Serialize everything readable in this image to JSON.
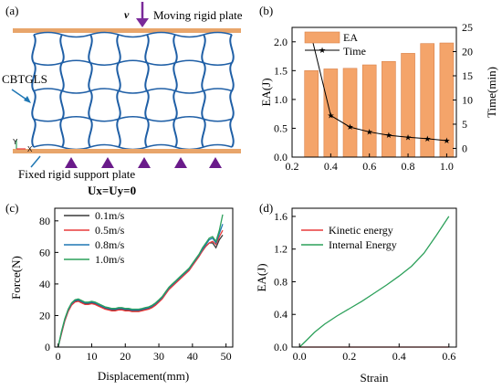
{
  "panel_a": {
    "label": "(a)",
    "velocity": "v",
    "moving_plate": "Moving rigid plate",
    "structure": "CBTGLS",
    "fixed_plate": "Fixed rigid support plate",
    "constraint": "Ux=Uy=0",
    "axis_y": "Y",
    "axis_x": "X",
    "accent": "#e8a56b",
    "structure_color": "#1f5fa6",
    "support_color": "#6a1b8a"
  },
  "chart_data": [
    {
      "id": "b",
      "label": "(b)",
      "type": "bar",
      "x": [
        0.3,
        0.4,
        0.5,
        0.6,
        0.7,
        0.8,
        0.9,
        1.0
      ],
      "series": [
        {
          "name": "EA",
          "type": "bar",
          "axis": "left",
          "color": "#f4a46a",
          "values": [
            1.5,
            1.53,
            1.54,
            1.6,
            1.66,
            1.8,
            1.97,
            1.98
          ]
        },
        {
          "name": "Time",
          "type": "line",
          "marker": "star",
          "axis": "right",
          "color": "#000000",
          "values": [
            23.2,
            6.8,
            4.4,
            3.4,
            2.7,
            2.3,
            2.0,
            1.6
          ]
        }
      ],
      "xlim": [
        0.2,
        1.05
      ],
      "ylim": [
        0,
        2.25
      ],
      "y2lim": [
        -1.8,
        25
      ],
      "xticks": [
        "0.2",
        "0.4",
        "0.6",
        "0.8",
        "1.0"
      ],
      "yticks": [
        "0.0",
        "0.5",
        "1.0",
        "1.5",
        "2.0"
      ],
      "y2ticks": [
        "0",
        "5",
        "10",
        "15",
        "20",
        "25"
      ],
      "ylabel": "EA(J)",
      "y2label": "Time(min)",
      "legend": "top-left"
    },
    {
      "id": "c",
      "label": "(c)",
      "type": "line",
      "xlim": [
        -1,
        52
      ],
      "ylim": [
        0,
        88
      ],
      "xticks": [
        "0",
        "10",
        "20",
        "30",
        "40",
        "50"
      ],
      "yticks": [
        "0",
        "20",
        "40",
        "60",
        "80"
      ],
      "xlabel": "Displacement(mm)",
      "ylabel": "Force(N)",
      "legend": "top-left",
      "series": [
        {
          "name": "0.1m/s",
          "color": "#3a3a3a",
          "x": [
            0,
            1,
            2,
            3,
            4,
            5,
            6,
            7,
            8,
            9,
            10,
            11,
            12,
            13,
            14,
            15,
            16,
            17,
            18,
            19,
            20,
            21,
            22,
            23,
            24,
            25,
            26,
            27,
            28,
            29,
            30,
            31,
            32,
            33,
            34,
            35,
            36,
            37,
            38,
            39,
            40,
            41,
            42,
            43,
            44,
            45,
            46,
            47,
            48,
            49
          ],
          "y": [
            0,
            9,
            17,
            23,
            27,
            29,
            29.5,
            28.5,
            27.5,
            27.5,
            28,
            27.5,
            26.5,
            25.5,
            24.5,
            24,
            23.5,
            23.5,
            24,
            24,
            23.5,
            23.5,
            23,
            23,
            23,
            23.5,
            24,
            24.5,
            25.5,
            27,
            29,
            31,
            34,
            37,
            39,
            41,
            43,
            45,
            47,
            49,
            52,
            55,
            58,
            61,
            64,
            66,
            66,
            63,
            68,
            71
          ]
        },
        {
          "name": "0.5m/s",
          "color": "#e83a3a",
          "x": [
            0,
            1,
            2,
            3,
            4,
            5,
            6,
            7,
            8,
            9,
            10,
            11,
            12,
            13,
            14,
            15,
            16,
            17,
            18,
            19,
            20,
            21,
            22,
            23,
            24,
            25,
            26,
            27,
            28,
            29,
            30,
            31,
            32,
            33,
            34,
            35,
            36,
            37,
            38,
            39,
            40,
            41,
            42,
            43,
            44,
            45,
            46,
            47,
            48,
            49
          ],
          "y": [
            0,
            8.5,
            16.5,
            22.5,
            26.5,
            28.5,
            29,
            28,
            27,
            27,
            27.5,
            27,
            26,
            25,
            24,
            23.5,
            23,
            23,
            23.5,
            23.5,
            23,
            23,
            22.5,
            22.5,
            22.5,
            23,
            23.5,
            24,
            25,
            26.5,
            28.5,
            30.5,
            33.5,
            36.5,
            38.5,
            40.5,
            42.5,
            44.5,
            46.5,
            48.5,
            51.5,
            54.5,
            57.5,
            61,
            64,
            66,
            67,
            65,
            70,
            74
          ]
        },
        {
          "name": "0.8m/s",
          "color": "#1f77b4",
          "x": [
            0,
            1,
            2,
            3,
            4,
            5,
            6,
            7,
            8,
            9,
            10,
            11,
            12,
            13,
            14,
            15,
            16,
            17,
            18,
            19,
            20,
            21,
            22,
            23,
            24,
            25,
            26,
            27,
            28,
            29,
            30,
            31,
            32,
            33,
            34,
            35,
            36,
            37,
            38,
            39,
            40,
            41,
            42,
            43,
            44,
            45,
            46,
            47,
            48,
            49
          ],
          "y": [
            0,
            9.5,
            17.5,
            23.5,
            27.5,
            29.5,
            30,
            29,
            28,
            28,
            28.5,
            28,
            27,
            26,
            25,
            24.5,
            24,
            24,
            24.5,
            24.5,
            24,
            24,
            23.5,
            23.5,
            23.5,
            24,
            24.5,
            25,
            26,
            27.5,
            29.5,
            31.5,
            34.5,
            37.5,
            39.5,
            41.5,
            43.5,
            45.5,
            47.5,
            49.5,
            52.5,
            55.5,
            58.5,
            62,
            65,
            68,
            69,
            66,
            72,
            78
          ]
        },
        {
          "name": "1.0m/s",
          "color": "#2ca05a",
          "x": [
            0,
            1,
            2,
            3,
            4,
            5,
            6,
            7,
            8,
            9,
            10,
            11,
            12,
            13,
            14,
            15,
            16,
            17,
            18,
            19,
            20,
            21,
            22,
            23,
            24,
            25,
            26,
            27,
            28,
            29,
            30,
            31,
            32,
            33,
            34,
            35,
            36,
            37,
            38,
            39,
            40,
            41,
            42,
            43,
            44,
            45,
            46,
            47,
            48,
            49
          ],
          "y": [
            0,
            10,
            18,
            24,
            28,
            30,
            30.5,
            29.5,
            28.5,
            28.5,
            29,
            28.5,
            27.5,
            26.5,
            25.5,
            25,
            24.5,
            24.5,
            25,
            25,
            24.5,
            24.5,
            24,
            24,
            24,
            24.5,
            25,
            25.5,
            26.5,
            28,
            30,
            32,
            35,
            38,
            40,
            42,
            44,
            46,
            48,
            50,
            53,
            56,
            59,
            63,
            66,
            69,
            70,
            67,
            74,
            84
          ]
        }
      ]
    },
    {
      "id": "d",
      "label": "(d)",
      "type": "line",
      "xlim": [
        -0.03,
        0.63
      ],
      "ylim": [
        0,
        1.7
      ],
      "xticks": [
        "0.0",
        "0.2",
        "0.4",
        "0.6"
      ],
      "yticks": [
        "0.0",
        "0.4",
        "0.8",
        "1.2",
        "1.6"
      ],
      "xlabel": "Strain",
      "ylabel": "EA(J)",
      "legend": "top-left",
      "series": [
        {
          "name": "Kinetic energy",
          "color": "#e83a3a",
          "x": [
            0.0,
            0.1,
            0.2,
            0.3,
            0.4,
            0.5,
            0.6
          ],
          "y": [
            0.0,
            0.0,
            0.0,
            0.0,
            0.0,
            0.0,
            0.0
          ]
        },
        {
          "name": "Internal Energy",
          "color": "#2ca05a",
          "x": [
            0.0,
            0.03,
            0.06,
            0.1,
            0.15,
            0.2,
            0.25,
            0.3,
            0.35,
            0.4,
            0.45,
            0.5,
            0.55,
            0.6
          ],
          "y": [
            0.0,
            0.09,
            0.18,
            0.28,
            0.38,
            0.47,
            0.56,
            0.66,
            0.76,
            0.87,
            0.99,
            1.15,
            1.37,
            1.6
          ]
        }
      ]
    }
  ]
}
